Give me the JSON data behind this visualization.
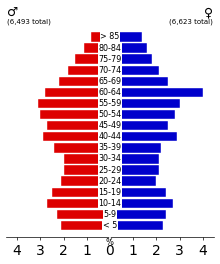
{
  "age_groups": [
    "< 5",
    "5-9",
    "10-14",
    "15-19",
    "20-24",
    "25-29",
    "30-34",
    "35-39",
    "40-44",
    "45-49",
    "50-54",
    "55-59",
    "60-64",
    "65-69",
    "70-74",
    "75-79",
    "80-84",
    "> 85"
  ],
  "male_pct": [
    2.1,
    2.3,
    2.7,
    2.5,
    2.1,
    2.0,
    2.0,
    2.4,
    2.9,
    2.7,
    3.0,
    3.1,
    2.8,
    2.2,
    1.8,
    1.5,
    1.1,
    0.8
  ],
  "female_pct": [
    2.3,
    2.4,
    2.7,
    2.4,
    2.0,
    2.1,
    2.1,
    2.2,
    2.9,
    2.5,
    2.8,
    3.0,
    4.0,
    2.5,
    2.1,
    1.8,
    1.6,
    1.4
  ],
  "male_color": "#dd0000",
  "female_color": "#0000cc",
  "male_total": "6,493 total",
  "female_total": "6,623 total",
  "male_symbol": "♂",
  "female_symbol": "♀",
  "xlabel": "%",
  "xlim": 4.5,
  "background_color": "#ffffff",
  "label_fontsize": 5.8,
  "tick_fontsize": 6.0
}
